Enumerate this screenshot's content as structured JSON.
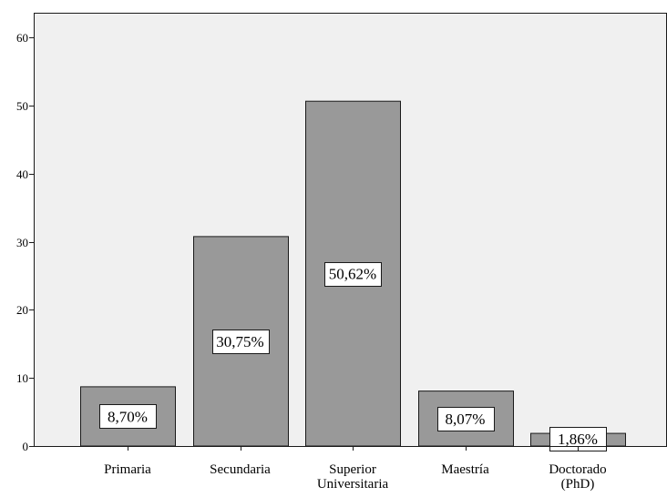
{
  "chart_data": {
    "type": "bar",
    "categories": [
      [
        "Primaria"
      ],
      [
        "Secundaria"
      ],
      [
        "Superior",
        "Universitaria"
      ],
      [
        "Maestría"
      ],
      [
        "Doctorado",
        "(PhD)"
      ]
    ],
    "values": [
      8.7,
      30.75,
      50.62,
      8.07,
      1.86
    ],
    "data_labels": [
      "8,70%",
      "30,75%",
      "50,62%",
      "8,07%",
      "1,86%"
    ],
    "title": "",
    "xlabel": "",
    "ylabel": "",
    "ylim": [
      0,
      60
    ],
    "yticks": [
      0,
      10,
      20,
      30,
      40,
      50,
      60
    ],
    "grid": false,
    "colors": {
      "plot_background": "#f0f0f0",
      "bar_fill": "#999999",
      "bar_stroke": "#1a1a1a",
      "label_box_fill": "#ffffff",
      "label_box_stroke": "#1a1a1a",
      "axis": "#1a1a1a",
      "text": "#000000"
    }
  }
}
